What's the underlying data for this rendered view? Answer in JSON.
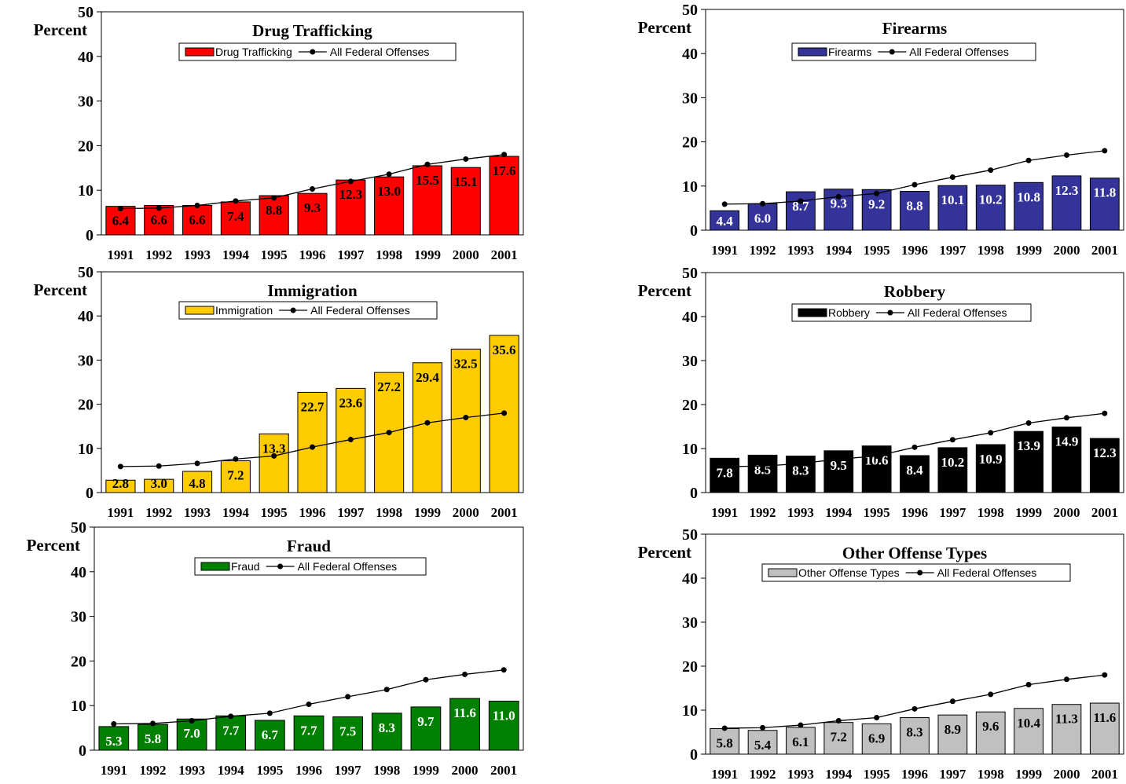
{
  "panel_common": {
    "ylabel": "Percent",
    "yticks": [
      0,
      10,
      20,
      30,
      40,
      50
    ],
    "ylim": [
      0,
      50
    ],
    "categories": [
      "1991",
      "1992",
      "1993",
      "1994",
      "1995",
      "1996",
      "1997",
      "1998",
      "1999",
      "2000",
      "2001"
    ],
    "line_series_name": "All Federal Offenses"
  },
  "chart_data": [
    {
      "type": "bar",
      "title": "Drug Trafficking",
      "categories": [
        "1991",
        "1992",
        "1993",
        "1994",
        "1995",
        "1996",
        "1997",
        "1998",
        "1999",
        "2000",
        "2001"
      ],
      "series": [
        {
          "name": "Drug Trafficking",
          "type": "bar",
          "color": "#ff0000",
          "values": [
            6.4,
            6.6,
            6.6,
            7.4,
            8.8,
            9.3,
            12.3,
            13.0,
            15.5,
            15.1,
            17.6
          ]
        },
        {
          "name": "All Federal Offenses",
          "type": "line",
          "color": "#000000",
          "values": [
            5.9,
            6.0,
            6.6,
            7.6,
            8.3,
            10.3,
            12.0,
            13.6,
            15.8,
            17.0,
            18.0
          ]
        }
      ],
      "value_labels": [
        "6.4",
        "6.6",
        "6.6",
        "7.4",
        "8.8",
        "9.3",
        "12.3",
        "13.0",
        "15.5",
        "15.1",
        "17.6"
      ],
      "label_color": "#000000",
      "ylabel": "Percent",
      "ylim": [
        0,
        50
      ],
      "legend": "top-center"
    },
    {
      "type": "bar",
      "title": "Firearms",
      "categories": [
        "1991",
        "1992",
        "1993",
        "1994",
        "1995",
        "1996",
        "1997",
        "1998",
        "1999",
        "2000",
        "2001"
      ],
      "series": [
        {
          "name": "Firearms",
          "type": "bar",
          "color": "#333399",
          "values": [
            4.4,
            6.0,
            8.7,
            9.3,
            9.2,
            8.8,
            10.1,
            10.2,
            10.8,
            12.3,
            11.8
          ]
        },
        {
          "name": "All Federal Offenses",
          "type": "line",
          "color": "#000000",
          "values": [
            5.9,
            6.0,
            6.6,
            7.6,
            8.3,
            10.3,
            12.0,
            13.6,
            15.8,
            17.0,
            18.0
          ]
        }
      ],
      "value_labels": [
        "4.4",
        "6.0",
        "8.7",
        "9.3",
        "9.2",
        "8.8",
        "10.1",
        "10.2",
        "10.8",
        "12.3",
        "11.8"
      ],
      "label_color": "#ffffff",
      "ylabel": "Percent",
      "ylim": [
        0,
        50
      ],
      "legend": "top-center"
    },
    {
      "type": "bar",
      "title": "Immigration",
      "categories": [
        "1991",
        "1992",
        "1993",
        "1994",
        "1995",
        "1996",
        "1997",
        "1998",
        "1999",
        "2000",
        "2001"
      ],
      "series": [
        {
          "name": "Immigration",
          "type": "bar",
          "color": "#ffcc00",
          "values": [
            2.8,
            3.0,
            4.8,
            7.2,
            13.3,
            22.7,
            23.6,
            27.2,
            29.4,
            32.5,
            35.6
          ]
        },
        {
          "name": "All Federal Offenses",
          "type": "line",
          "color": "#000000",
          "values": [
            5.9,
            6.0,
            6.6,
            7.6,
            8.3,
            10.3,
            12.0,
            13.6,
            15.8,
            17.0,
            18.0
          ]
        }
      ],
      "value_labels": [
        "2.8",
        "3.0",
        "4.8",
        "7.2",
        "13.3",
        "22.7",
        "23.6",
        "27.2",
        "29.4",
        "32.5",
        "35.6"
      ],
      "label_color": "#000000",
      "ylabel": "Percent",
      "ylim": [
        0,
        50
      ],
      "legend": "top-center"
    },
    {
      "type": "bar",
      "title": "Robbery",
      "categories": [
        "1991",
        "1992",
        "1993",
        "1994",
        "1995",
        "1996",
        "1997",
        "1998",
        "1999",
        "2000",
        "2001"
      ],
      "series": [
        {
          "name": "Robbery",
          "type": "bar",
          "color": "#000000",
          "values": [
            7.8,
            8.5,
            8.3,
            9.5,
            10.6,
            8.4,
            10.2,
            10.9,
            13.9,
            14.9,
            12.3
          ]
        },
        {
          "name": "All Federal Offenses",
          "type": "line",
          "color": "#000000",
          "values": [
            5.9,
            6.0,
            6.6,
            7.6,
            8.3,
            10.3,
            12.0,
            13.6,
            15.8,
            17.0,
            18.0
          ]
        }
      ],
      "value_labels": [
        "7.8",
        "8.5",
        "8.3",
        "9.5",
        "10.6",
        "8.4",
        "10.2",
        "10.9",
        "13.9",
        "14.9",
        "12.3"
      ],
      "label_color": "#ffffff",
      "ylabel": "Percent",
      "ylim": [
        0,
        50
      ],
      "legend": "top-center"
    },
    {
      "type": "bar",
      "title": "Fraud",
      "categories": [
        "1991",
        "1992",
        "1993",
        "1994",
        "1995",
        "1996",
        "1997",
        "1998",
        "1999",
        "2000",
        "2001"
      ],
      "series": [
        {
          "name": "Fraud",
          "type": "bar",
          "color": "#008000",
          "values": [
            5.3,
            5.8,
            7.0,
            7.7,
            6.7,
            7.7,
            7.5,
            8.3,
            9.7,
            11.6,
            11.0
          ]
        },
        {
          "name": "All Federal Offenses",
          "type": "line",
          "color": "#000000",
          "values": [
            5.9,
            6.0,
            6.6,
            7.6,
            8.3,
            10.3,
            12.0,
            13.6,
            15.8,
            17.0,
            18.0
          ]
        }
      ],
      "value_labels": [
        "5.3",
        "5.8",
        "7.0",
        "7.7",
        "6.7",
        "7.7",
        "7.5",
        "8.3",
        "9.7",
        "11.6",
        "11.0"
      ],
      "label_color": "#ffffff",
      "ylabel": "Percent",
      "ylim": [
        0,
        50
      ],
      "legend": "top-center"
    },
    {
      "type": "bar",
      "title": "Other Offense Types",
      "categories": [
        "1991",
        "1992",
        "1993",
        "1994",
        "1995",
        "1996",
        "1997",
        "1998",
        "1999",
        "2000",
        "2001"
      ],
      "series": [
        {
          "name": "Other Offense Types",
          "type": "bar",
          "color": "#c0c0c0",
          "values": [
            5.8,
            5.4,
            6.1,
            7.2,
            6.9,
            8.3,
            8.9,
            9.6,
            10.4,
            11.3,
            11.6
          ]
        },
        {
          "name": "All Federal Offenses",
          "type": "line",
          "color": "#000000",
          "values": [
            5.9,
            6.0,
            6.6,
            7.6,
            8.3,
            10.3,
            12.0,
            13.6,
            15.8,
            17.0,
            18.0
          ]
        }
      ],
      "value_labels": [
        "5.8",
        "5.4",
        "6.1",
        "7.2",
        "6.9",
        "8.3",
        "8.9",
        "9.6",
        "10.4",
        "11.3",
        "11.6"
      ],
      "label_color": "#000000",
      "ylabel": "Percent",
      "ylim": [
        0,
        50
      ],
      "legend": "top-center"
    }
  ]
}
